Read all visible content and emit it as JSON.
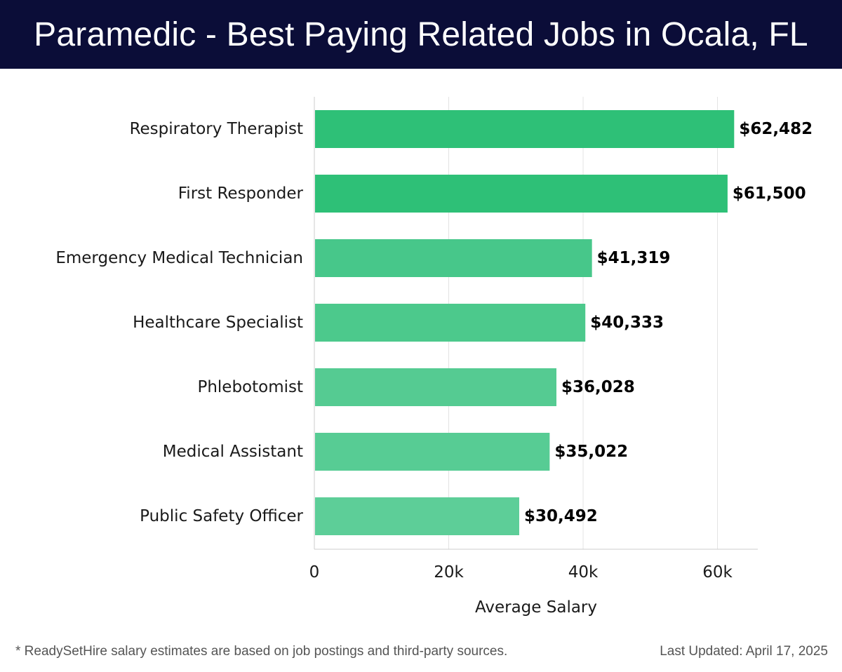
{
  "header": {
    "title": "Paramedic - Best Paying Related Jobs in Ocala, FL"
  },
  "chart_data": {
    "type": "bar",
    "orientation": "horizontal",
    "title": "Paramedic - Best Paying Related Jobs in Ocala, FL",
    "xlabel": "Average Salary",
    "ylabel": "",
    "xlim": [
      0,
      66000
    ],
    "x_ticks": [
      0,
      20000,
      40000,
      60000
    ],
    "x_tick_labels": [
      "0",
      "20k",
      "40k",
      "60k"
    ],
    "grid": true,
    "categories": [
      "Respiratory Therapist",
      "First Responder",
      "Emergency Medical Technician",
      "Healthcare Specialist",
      "Phlebotomist",
      "Medical Assistant",
      "Public Safety Officer"
    ],
    "values": [
      62482,
      61500,
      41319,
      40333,
      36028,
      35022,
      30492
    ],
    "value_labels": [
      "$62,482",
      "$61,500",
      "$41,319",
      "$40,333",
      "$36,028",
      "$35,022",
      "$30,492"
    ],
    "bar_colors": [
      "#2ec077",
      "#2ec077",
      "#47c78a",
      "#4cc98c",
      "#55cb92",
      "#57cc94",
      "#5dce98"
    ]
  },
  "footer": {
    "note": "* ReadySetHire salary estimates are based on job postings and third-party sources.",
    "updated": "Last Updated: April 17, 2025"
  }
}
